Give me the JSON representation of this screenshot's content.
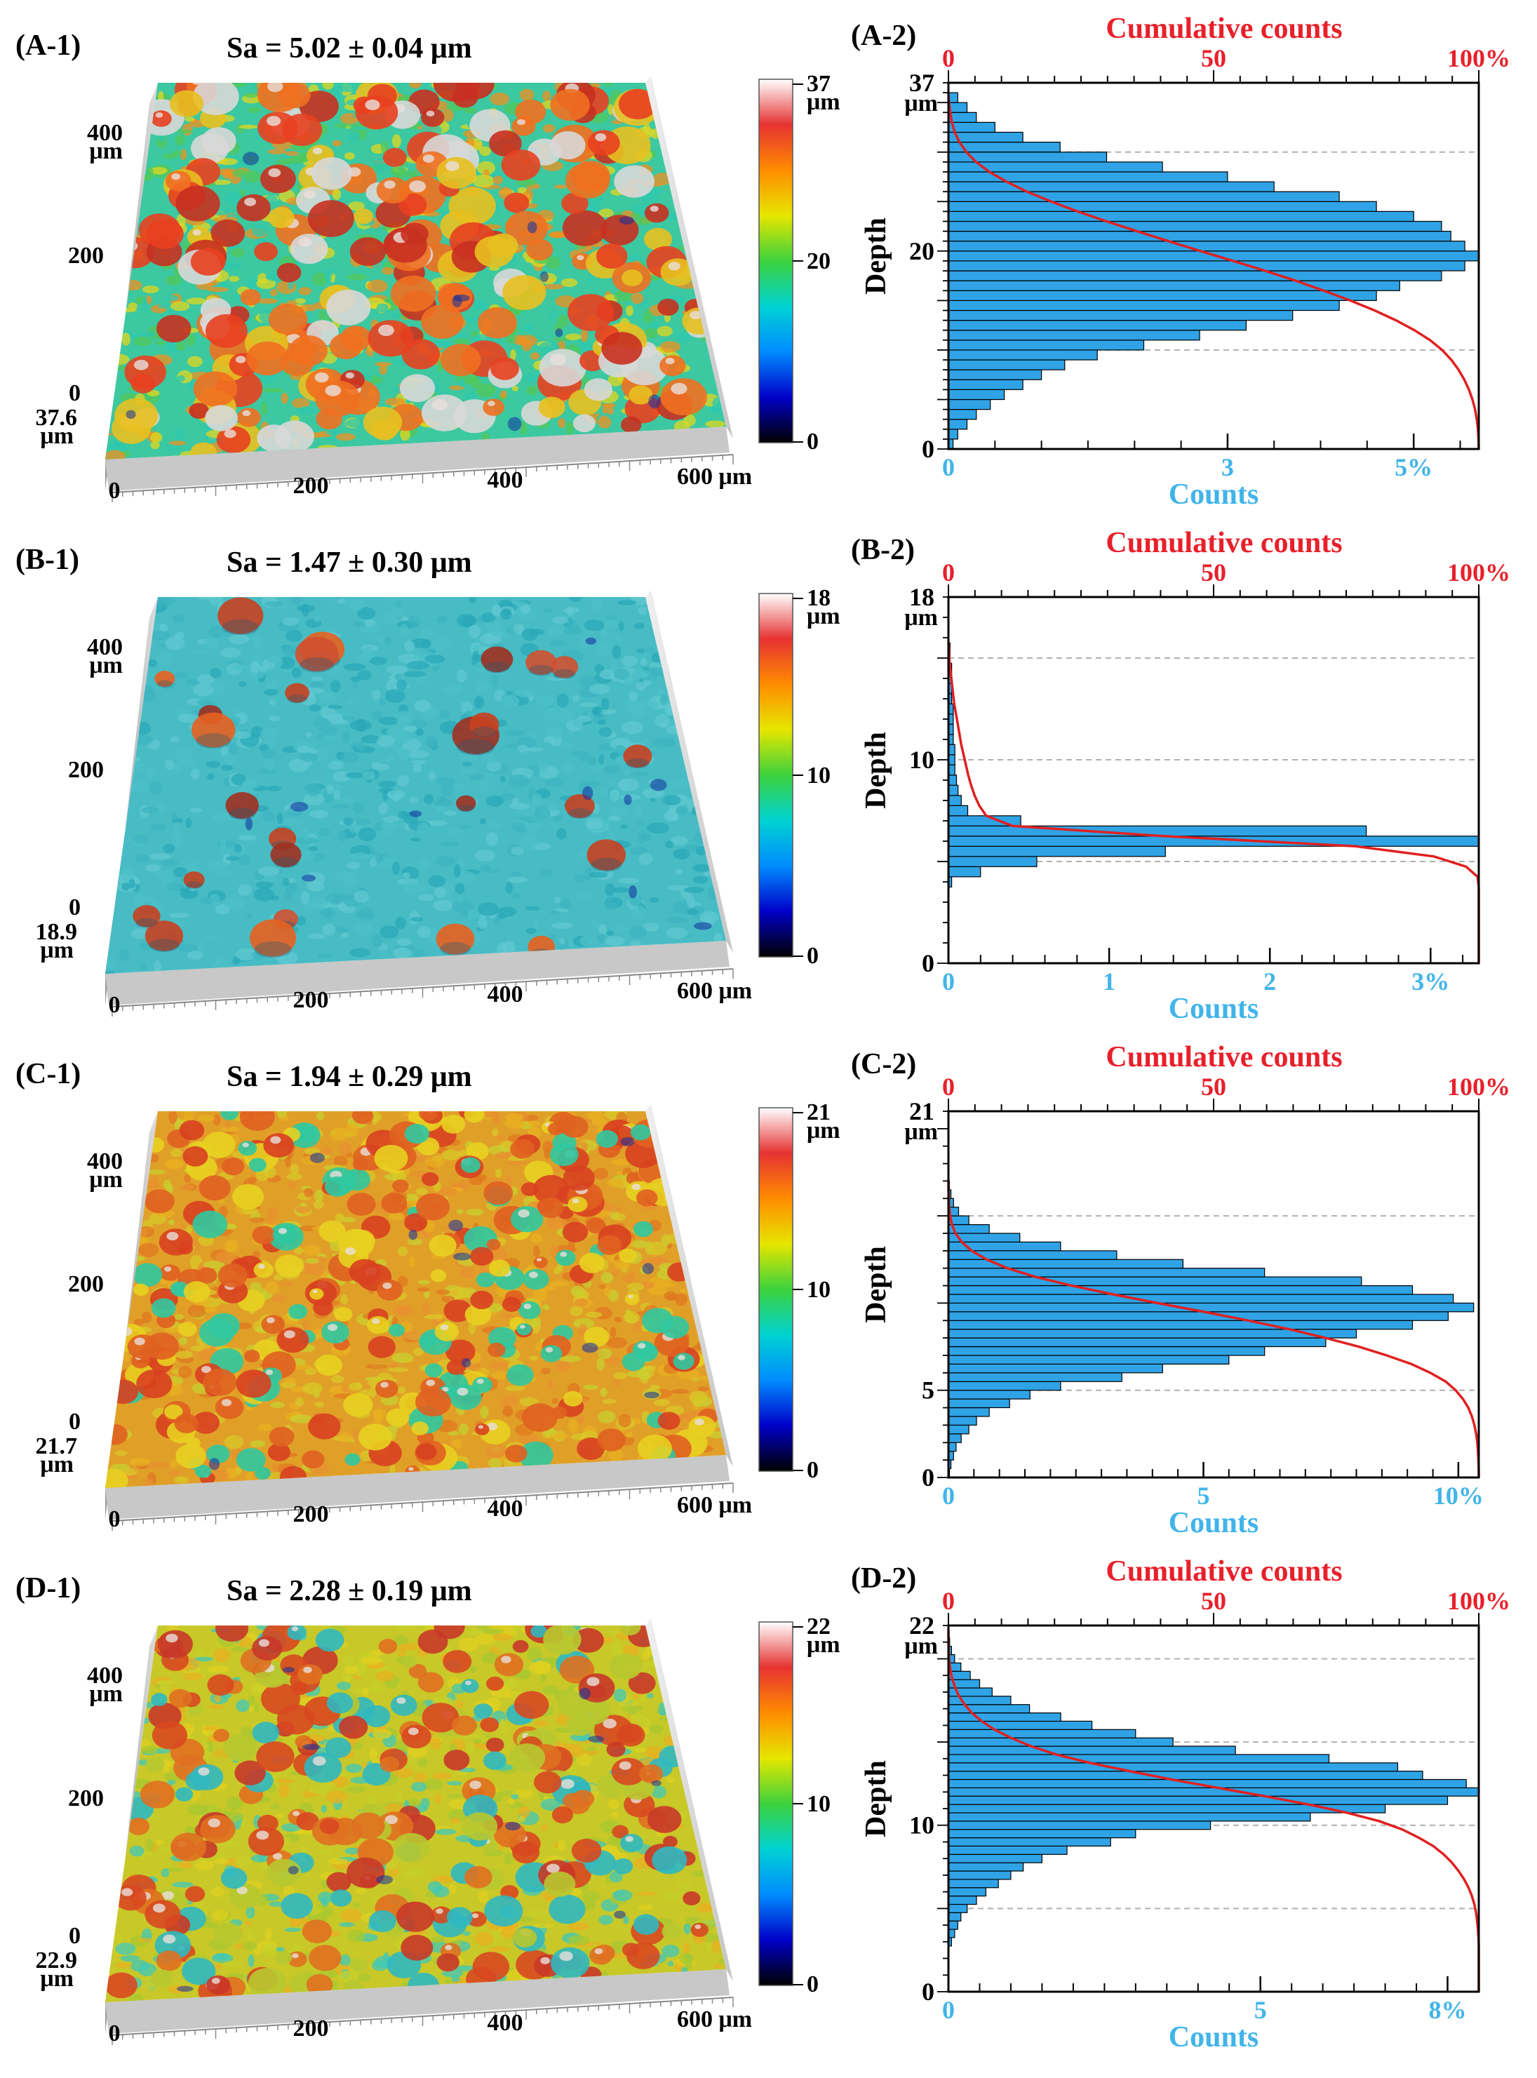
{
  "colors": {
    "histogram_fill": "#2fa3e6",
    "histogram_edge": "#000000",
    "cumulative_line": "#e02020",
    "counts_axis_label": "#41b4ea",
    "cumulative_axis_label": "#e8202a",
    "guide_line": "#b0b0b0"
  },
  "colorbar_gradient": [
    "#000000",
    "#0000c8",
    "#008cff",
    "#00d2d2",
    "#3cd23c",
    "#e6e600",
    "#ff8c00",
    "#e63232",
    "#ffffff"
  ],
  "panels": [
    {
      "map_label": "(A-1)",
      "hist_label": "(A-2)",
      "sa_text": "Sa = 5.02 ± 0.04 μm",
      "surface_style": "peaks-rainbow",
      "colorbar": {
        "max": "37",
        "unit": "μm",
        "mid": "20",
        "min": "0"
      },
      "map_axes": {
        "y_max": "400",
        "y_unit": "μm",
        "y_mid": "200",
        "z0": "0",
        "z_max": "37.6",
        "z_unit": "μm",
        "x_ticks": [
          "0",
          "200",
          "400",
          "600 μm"
        ]
      }
    },
    {
      "map_label": "(B-1)",
      "hist_label": "(B-2)",
      "sa_text": "Sa = 1.47 ± 0.30 μm",
      "surface_style": "flat-cyan",
      "colorbar": {
        "max": "18",
        "unit": "μm",
        "mid": "10",
        "min": "0"
      },
      "map_axes": {
        "y_max": "400",
        "y_unit": "μm",
        "y_mid": "200",
        "z0": "0",
        "z_max": "18.9",
        "z_unit": "μm",
        "x_ticks": [
          "0",
          "200",
          "400",
          "600 μm"
        ]
      }
    },
    {
      "map_label": "(C-1)",
      "hist_label": "(C-2)",
      "sa_text": "Sa = 1.94 ± 0.29 μm",
      "surface_style": "rough-orange",
      "colorbar": {
        "max": "21",
        "unit": "μm",
        "mid": "10",
        "min": "0"
      },
      "map_axes": {
        "y_max": "400",
        "y_unit": "μm",
        "y_mid": "200",
        "z0": "0",
        "z_max": "21.7",
        "z_unit": "μm",
        "x_ticks": [
          "0",
          "200",
          "400",
          "600 μm"
        ]
      }
    },
    {
      "map_label": "(D-1)",
      "hist_label": "(D-2)",
      "sa_text": "Sa = 2.28 ± 0.19 μm",
      "surface_style": "rough-yellow",
      "colorbar": {
        "max": "22",
        "unit": "μm",
        "mid": "10",
        "min": "0"
      },
      "map_axes": {
        "y_max": "400",
        "y_unit": "μm",
        "y_mid": "200",
        "z0": "0",
        "z_max": "22.9",
        "z_unit": "μm",
        "x_ticks": [
          "0",
          "200",
          "400",
          "600 μm"
        ]
      }
    }
  ],
  "chart_data": [
    {
      "type": "bar",
      "orientation": "horizontal",
      "title": "Cumulative counts",
      "xlabel": "Counts",
      "ylabel": "Depth",
      "x_tick_labels": [
        "0",
        "3",
        "5%"
      ],
      "x_tick_values": [
        0,
        3,
        5
      ],
      "xlim": [
        0,
        5.7
      ],
      "x_top_tick_labels": [
        "0",
        "50",
        "100%"
      ],
      "y_tick_labels": [
        "0",
        "20"
      ],
      "y_tick_values": [
        0,
        20
      ],
      "y_max_label": "37",
      "y_max_unit": "μm",
      "ylim": [
        0,
        37
      ],
      "guides": [
        30,
        10
      ],
      "bin_start": 0.5,
      "bin_width": 1,
      "bin_values": [
        0.05,
        0.1,
        0.2,
        0.3,
        0.45,
        0.6,
        0.8,
        1.0,
        1.25,
        1.6,
        2.1,
        2.7,
        3.2,
        3.7,
        4.2,
        4.6,
        4.85,
        5.3,
        5.55,
        5.7,
        5.55,
        5.4,
        5.3,
        5.0,
        4.6,
        4.2,
        3.5,
        3.0,
        2.3,
        1.7,
        1.2,
        0.8,
        0.5,
        0.3,
        0.2,
        0.1
      ],
      "cumulative": {
        "series": "Cumulative counts",
        "from": "0%",
        "to": "100%"
      }
    },
    {
      "type": "bar",
      "orientation": "horizontal",
      "title": "Cumulative counts",
      "xlabel": "Counts",
      "ylabel": "Depth",
      "x_tick_labels": [
        "0",
        "1",
        "2",
        "3%"
      ],
      "x_tick_values": [
        0,
        1,
        2,
        3
      ],
      "xlim": [
        0,
        3.3
      ],
      "x_top_tick_labels": [
        "0",
        "50",
        "100%"
      ],
      "y_tick_labels": [
        "0",
        "10"
      ],
      "y_tick_values": [
        0,
        10
      ],
      "y_max_label": "18",
      "y_max_unit": "μm",
      "ylim": [
        0,
        18
      ],
      "guides": [
        15,
        10,
        5
      ],
      "bin_start": 4.0,
      "bin_width": 0.5,
      "bin_values": [
        0.02,
        0.2,
        0.55,
        1.35,
        3.3,
        2.6,
        0.45,
        0.12,
        0.08,
        0.06,
        0.05,
        0.04,
        0.04,
        0.04,
        0.03,
        0.03,
        0.03,
        0.03,
        0.02,
        0.02,
        0.02,
        0.02,
        0.01,
        0.01
      ],
      "cumulative": {
        "series": "Cumulative counts",
        "from": "0%",
        "to": "100%"
      }
    },
    {
      "type": "bar",
      "orientation": "horizontal",
      "title": "Cumulative counts",
      "xlabel": "Counts",
      "ylabel": "Depth",
      "x_tick_labels": [
        "0",
        "5",
        "10%"
      ],
      "x_tick_values": [
        0,
        5,
        10
      ],
      "xlim": [
        0,
        10.4
      ],
      "x_top_tick_labels": [
        "0",
        "50",
        "100%"
      ],
      "y_tick_labels": [
        "0",
        "5"
      ],
      "y_tick_values": [
        0,
        5
      ],
      "y_max_label": "21",
      "y_max_unit": "μm",
      "ylim": [
        0,
        21
      ],
      "guides": [
        21,
        15,
        5
      ],
      "bin_start": 0.25,
      "bin_width": 0.5,
      "bin_values": [
        0.02,
        0.05,
        0.1,
        0.15,
        0.25,
        0.4,
        0.55,
        0.8,
        1.2,
        1.6,
        2.2,
        3.4,
        4.2,
        5.5,
        6.2,
        7.4,
        8.0,
        9.1,
        9.8,
        10.3,
        9.9,
        9.1,
        8.1,
        6.2,
        4.6,
        3.3,
        2.2,
        1.4,
        0.8,
        0.4,
        0.2,
        0.1,
        0.05,
        0.02
      ],
      "cumulative": {
        "series": "Cumulative counts",
        "from": "0%",
        "to": "100%"
      }
    },
    {
      "type": "bar",
      "orientation": "horizontal",
      "title": "Cumulative counts",
      "xlabel": "Counts",
      "ylabel": "Depth",
      "x_tick_labels": [
        "0",
        "5",
        "8%"
      ],
      "x_tick_values": [
        0,
        5,
        8
      ],
      "xlim": [
        0,
        8.5
      ],
      "x_top_tick_labels": [
        "0",
        "50",
        "100%"
      ],
      "y_tick_labels": [
        "0",
        "10"
      ],
      "y_tick_values": [
        0,
        10
      ],
      "y_max_label": "22",
      "y_max_unit": "μm",
      "ylim": [
        0,
        22
      ],
      "guides": [
        20,
        15,
        10,
        5
      ],
      "bin_start": 3.0,
      "bin_width": 0.5,
      "bin_values": [
        0.05,
        0.1,
        0.15,
        0.2,
        0.3,
        0.45,
        0.6,
        0.8,
        1.0,
        1.2,
        1.5,
        1.9,
        2.6,
        3.0,
        4.2,
        5.8,
        7.0,
        8.0,
        8.5,
        8.3,
        7.6,
        7.2,
        6.1,
        4.6,
        3.6,
        3.0,
        2.3,
        1.8,
        1.3,
        1.0,
        0.7,
        0.5,
        0.35,
        0.2,
        0.1,
        0.05,
        0.02,
        0.01
      ],
      "cumulative": {
        "series": "Cumulative counts",
        "from": "0%",
        "to": "100%"
      }
    }
  ]
}
